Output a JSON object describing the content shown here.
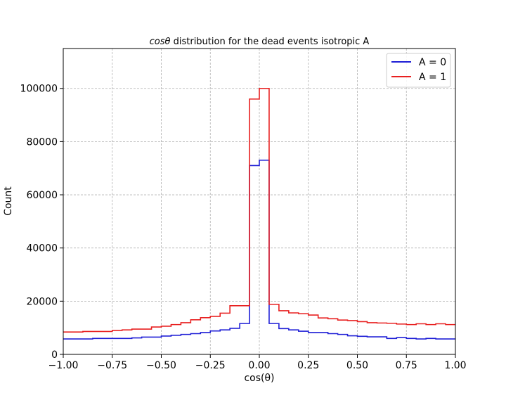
{
  "chart_data": {
    "type": "line",
    "title": {
      "italic_part": "cosθ",
      "rest": " distribution for the dead events isotropic A"
    },
    "xlabel": "cos(θ)",
    "ylabel": "Count",
    "xlim": [
      -1.0,
      1.0
    ],
    "ylim": [
      0,
      115000
    ],
    "xticks": [
      -1.0,
      -0.75,
      -0.5,
      -0.25,
      0.0,
      0.25,
      0.5,
      0.75,
      1.0
    ],
    "xtick_labels": [
      "−1.00",
      "−0.75",
      "−0.50",
      "−0.25",
      "0.00",
      "0.25",
      "0.50",
      "0.75",
      "1.00"
    ],
    "yticks": [
      0,
      20000,
      40000,
      60000,
      80000,
      100000
    ],
    "ytick_labels": [
      "0",
      "20000",
      "40000",
      "60000",
      "80000",
      "100000"
    ],
    "grid": true,
    "legend_position": "top-right",
    "bin_edges": [
      -1.0,
      -0.95,
      -0.9,
      -0.85,
      -0.8,
      -0.75,
      -0.7,
      -0.65,
      -0.6,
      -0.55,
      -0.5,
      -0.45,
      -0.4,
      -0.35,
      -0.3,
      -0.25,
      -0.2,
      -0.15,
      -0.1,
      -0.05,
      0.0,
      0.05,
      0.1,
      0.15,
      0.2,
      0.25,
      0.3,
      0.35,
      0.4,
      0.45,
      0.5,
      0.55,
      0.6,
      0.65,
      0.7,
      0.75,
      0.8,
      0.85,
      0.9,
      0.95,
      1.0
    ],
    "series": [
      {
        "name": "A = 0",
        "color": "#1f1fd6",
        "values": [
          5800,
          5800,
          5800,
          6000,
          6000,
          6000,
          6000,
          6200,
          6500,
          6500,
          6900,
          7200,
          7500,
          7800,
          8200,
          8800,
          9200,
          9800,
          11600,
          71000,
          73000,
          11600,
          9700,
          9200,
          8700,
          8200,
          8200,
          7800,
          7500,
          7000,
          6800,
          6600,
          6600,
          6000,
          6300,
          6000,
          5800,
          6000,
          5800,
          5800
        ]
      },
      {
        "name": "A = 1",
        "color": "#e82020",
        "values": [
          8400,
          8400,
          8600,
          8600,
          8600,
          9000,
          9200,
          9500,
          9500,
          10300,
          10600,
          11200,
          11900,
          13000,
          13800,
          14300,
          15500,
          18300,
          18300,
          96000,
          100000,
          18800,
          16400,
          15600,
          15300,
          14800,
          13700,
          13400,
          12900,
          12700,
          12300,
          11900,
          11800,
          11700,
          11400,
          11200,
          11500,
          11200,
          11500,
          11200
        ]
      }
    ]
  }
}
